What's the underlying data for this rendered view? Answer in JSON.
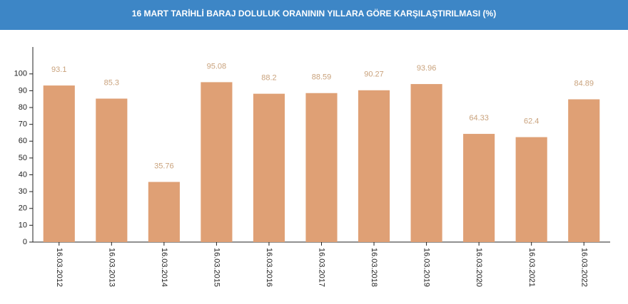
{
  "chart_data": {
    "type": "bar",
    "title": "16 MART TARİHLİ BARAJ DOLULUK ORANININ YILLARA GÖRE KARŞILAŞTIRILMASI (%)",
    "categories": [
      "16.03.2012",
      "16.03.2013",
      "16.03.2014",
      "16.03.2015",
      "16.03.2016",
      "16.03.2017",
      "16.03.2018",
      "16.03.2019",
      "16.03.2020",
      "16.03.2021",
      "16.03.2022"
    ],
    "values": [
      93.1,
      85.3,
      35.76,
      95.08,
      88.2,
      88.59,
      90.27,
      93.96,
      64.33,
      62.4,
      84.89
    ],
    "color": "#dfa075",
    "ylim": [
      0,
      116
    ],
    "yticks": [
      0,
      10,
      20,
      30,
      40,
      50,
      60,
      70,
      80,
      90,
      100
    ],
    "grid": false
  }
}
